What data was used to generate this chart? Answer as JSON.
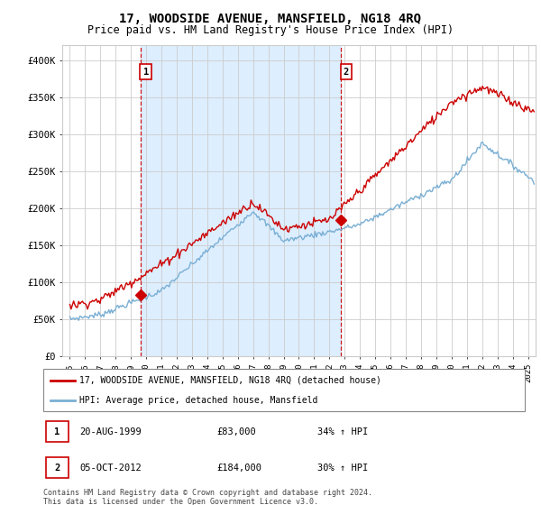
{
  "title": "17, WOODSIDE AVENUE, MANSFIELD, NG18 4RQ",
  "subtitle": "Price paid vs. HM Land Registry's House Price Index (HPI)",
  "title_fontsize": 10,
  "subtitle_fontsize": 8.5,
  "ylabel_ticks": [
    "£0",
    "£50K",
    "£100K",
    "£150K",
    "£200K",
    "£250K",
    "£300K",
    "£350K",
    "£400K"
  ],
  "ytick_values": [
    0,
    50000,
    100000,
    150000,
    200000,
    250000,
    300000,
    350000,
    400000
  ],
  "ylim": [
    0,
    420000
  ],
  "xlim_start": 1994.5,
  "xlim_end": 2025.5,
  "xtick_years": [
    1995,
    1996,
    1997,
    1998,
    1999,
    2000,
    2001,
    2002,
    2003,
    2004,
    2005,
    2006,
    2007,
    2008,
    2009,
    2010,
    2011,
    2012,
    2013,
    2014,
    2015,
    2016,
    2017,
    2018,
    2019,
    2020,
    2021,
    2022,
    2023,
    2024,
    2025
  ],
  "red_line_color": "#cc0000",
  "blue_line_color": "#7aafd4",
  "shade_color": "#ddeeff",
  "vline_color": "#cc0000",
  "marker_color": "#cc0000",
  "sale1_x": 1999.64,
  "sale1_y": 83000,
  "sale1_label": "1",
  "sale2_x": 2012.76,
  "sale2_y": 184000,
  "sale2_label": "2",
  "legend_label_red": "17, WOODSIDE AVENUE, MANSFIELD, NG18 4RQ (detached house)",
  "legend_label_blue": "HPI: Average price, detached house, Mansfield",
  "table_rows": [
    {
      "num": "1",
      "date": "20-AUG-1999",
      "price": "£83,000",
      "hpi": "34% ↑ HPI"
    },
    {
      "num": "2",
      "date": "05-OCT-2012",
      "price": "£184,000",
      "hpi": "30% ↑ HPI"
    }
  ],
  "footer": "Contains HM Land Registry data © Crown copyright and database right 2024.\nThis data is licensed under the Open Government Licence v3.0.",
  "background_color": "#ffffff",
  "plot_bg_color": "#ffffff",
  "grid_color": "#cccccc"
}
